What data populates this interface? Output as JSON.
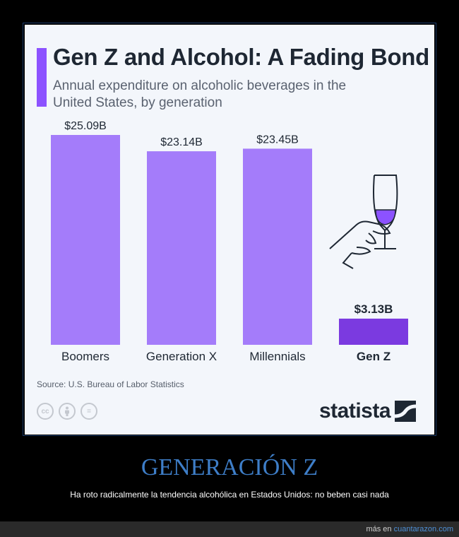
{
  "title": "Gen Z and Alcohol: A Fading Bond",
  "subtitle": "Annual expenditure on alcoholic beverages in the United States, by generation",
  "source": "Source: U.S. Bureau of Labor Statistics",
  "brand": "statista",
  "headline": "GENERACIÓN Z",
  "caption": "Ha roto radicalmente la tendencia alcohólica en Estados Unidos: no beben casi nada",
  "credit": {
    "prefix": "más en",
    "site": "cuantarazon.com"
  },
  "cc_icons": [
    "cc-icon",
    "person-icon",
    "equals-icon"
  ],
  "colors": {
    "bar": "#a47cfa",
    "highlight": "#7b3ae0",
    "title_bar": "#8c52ff"
  },
  "chart_data": {
    "type": "bar",
    "title": "Gen Z and Alcohol: A Fading Bond",
    "categories": [
      "Boomers",
      "Generation X",
      "Millennials",
      "Gen Z"
    ],
    "values": [
      25.09,
      23.14,
      23.45,
      3.13
    ],
    "labels": [
      "$25.09B",
      "$23.14B",
      "$23.45B",
      "$3.13B"
    ],
    "highlight": "Gen Z",
    "ylim": [
      0,
      25.09
    ],
    "xlabel": "",
    "ylabel": ""
  }
}
